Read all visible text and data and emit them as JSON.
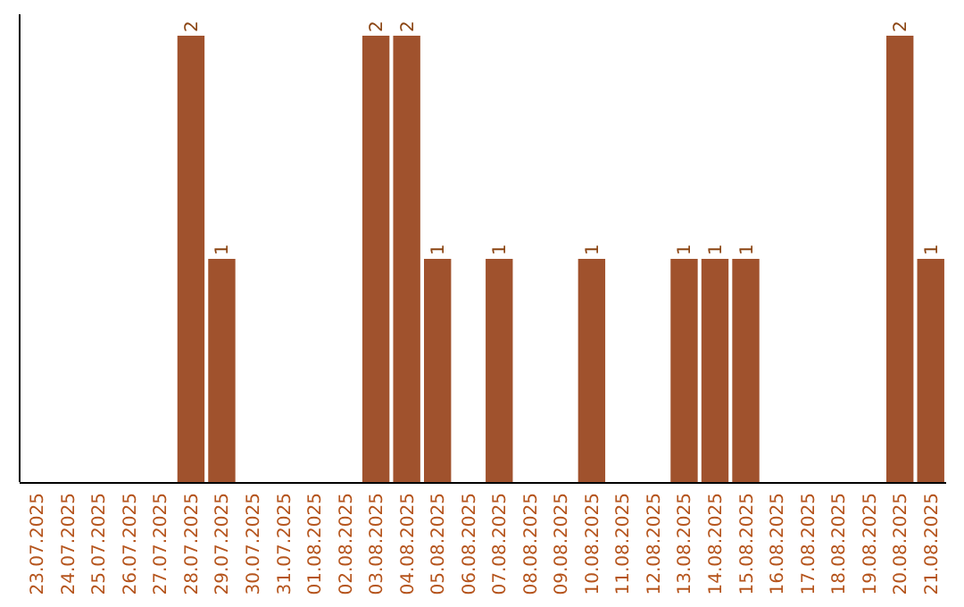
{
  "chart_data": {
    "type": "bar",
    "categories": [
      "23.07.2025",
      "24.07.2025",
      "25.07.2025",
      "26.07.2025",
      "27.07.2025",
      "28.07.2025",
      "29.07.2025",
      "30.07.2025",
      "31.07.2025",
      "01.08.2025",
      "02.08.2025",
      "03.08.2025",
      "04.08.2025",
      "05.08.2025",
      "06.08.2025",
      "07.08.2025",
      "08.08.2025",
      "09.08.2025",
      "10.08.2025",
      "11.08.2025",
      "12.08.2025",
      "13.08.2025",
      "14.08.2025",
      "15.08.2025",
      "16.08.2025",
      "17.08.2025",
      "18.08.2025",
      "19.08.2025",
      "20.08.2025",
      "21.08.2025"
    ],
    "values": [
      0,
      0,
      0,
      0,
      0,
      2,
      1,
      0,
      0,
      0,
      0,
      2,
      2,
      1,
      0,
      1,
      0,
      0,
      1,
      0,
      0,
      1,
      1,
      1,
      0,
      0,
      0,
      0,
      2,
      1
    ],
    "value_labels": [
      null,
      null,
      null,
      null,
      null,
      "2",
      "1",
      null,
      null,
      null,
      null,
      "2",
      "2",
      "1",
      null,
      "1",
      null,
      null,
      "1",
      null,
      null,
      "1",
      "1",
      "1",
      null,
      null,
      null,
      null,
      "2",
      "1"
    ],
    "color": "#a0522d"
  }
}
